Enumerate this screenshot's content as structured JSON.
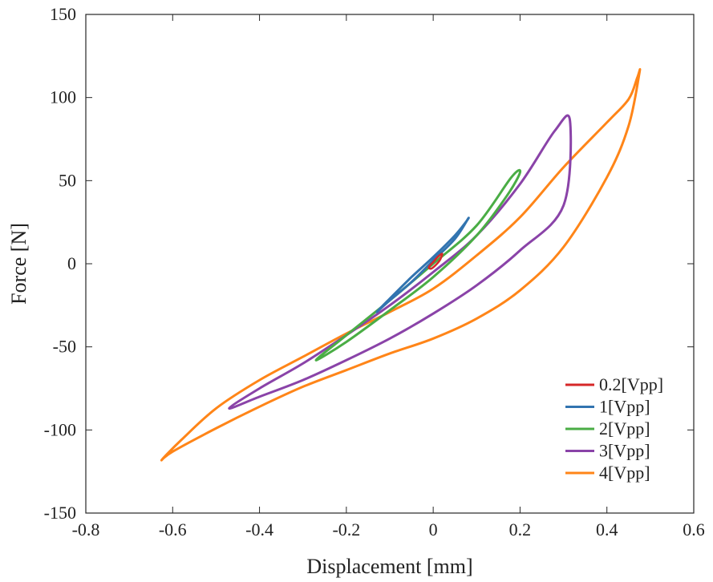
{
  "chart_data": {
    "type": "line",
    "title": "",
    "xlabel": "Displacement [mm]",
    "ylabel": "Force [N]",
    "xlim": [
      -0.8,
      0.6
    ],
    "ylim": [
      -150,
      150
    ],
    "xticks": [
      -0.8,
      -0.6,
      -0.4,
      -0.2,
      0,
      0.2,
      0.4,
      0.6
    ],
    "xtick_labels": [
      "-0.8",
      "-0.6",
      "-0.4",
      "-0.2",
      "0",
      "0.2",
      "0.4",
      "0.6"
    ],
    "yticks": [
      -150,
      -100,
      -50,
      0,
      50,
      100,
      150
    ],
    "ytick_labels": [
      "-150",
      "-100",
      "-50",
      "0",
      "50",
      "100",
      "150"
    ],
    "grid": false,
    "legend_position": "bottom-right",
    "series": [
      {
        "name": "0.2[Vpp]",
        "color": "#d62728",
        "x": [
          -0.01,
          0.0,
          0.01,
          0.02,
          0.02,
          0.015,
          0.005,
          -0.005,
          -0.01
        ],
        "y": [
          -2,
          1,
          4,
          6,
          5,
          2,
          -1,
          -3,
          -2
        ]
      },
      {
        "name": "1[Vpp]",
        "color": "#3274b0",
        "x": [
          -0.13,
          -0.1,
          -0.05,
          0.0,
          0.05,
          0.08,
          0.075,
          0.05,
          0.0,
          -0.05,
          -0.1,
          -0.13
        ],
        "y": [
          -29,
          -22,
          -11,
          2,
          15,
          27,
          25,
          17,
          4,
          -8,
          -21,
          -29
        ]
      },
      {
        "name": "2[Vpp]",
        "color": "#4aad45",
        "x": [
          -0.27,
          -0.2,
          -0.1,
          0.0,
          0.1,
          0.17,
          0.2,
          0.18,
          0.1,
          0.0,
          -0.1,
          -0.2,
          -0.27
        ],
        "y": [
          -58,
          -47,
          -28,
          -8,
          17,
          41,
          55,
          52,
          23,
          0,
          -22,
          -43,
          -58
        ]
      },
      {
        "name": "3[Vpp]",
        "color": "#8a43a8",
        "x": [
          -0.47,
          -0.4,
          -0.3,
          -0.2,
          -0.1,
          0.0,
          0.1,
          0.2,
          0.3,
          0.315,
          0.28,
          0.2,
          0.1,
          0.0,
          -0.1,
          -0.2,
          -0.3,
          -0.4,
          -0.47
        ],
        "y": [
          -87,
          -80,
          -70,
          -58,
          -45,
          -30,
          -13,
          8,
          35,
          86,
          80,
          48,
          17,
          -5,
          -25,
          -43,
          -60,
          -75,
          -87
        ]
      },
      {
        "name": "4[Vpp]",
        "color": "#ff8518",
        "x": [
          -0.625,
          -0.6,
          -0.5,
          -0.4,
          -0.3,
          -0.2,
          -0.1,
          0.0,
          0.1,
          0.2,
          0.3,
          0.4,
          0.45,
          0.475,
          0.47,
          0.45,
          0.4,
          0.3,
          0.2,
          0.1,
          0.0,
          -0.1,
          -0.2,
          -0.3,
          -0.4,
          -0.5,
          -0.58,
          -0.625
        ],
        "y": [
          -118,
          -113,
          -99,
          -86,
          -74,
          -64,
          -54,
          -45,
          -33,
          -16,
          10,
          52,
          83,
          115,
          112,
          99,
          85,
          58,
          28,
          5,
          -15,
          -29,
          -42,
          -56,
          -70,
          -87,
          -106,
          -118
        ]
      }
    ]
  }
}
